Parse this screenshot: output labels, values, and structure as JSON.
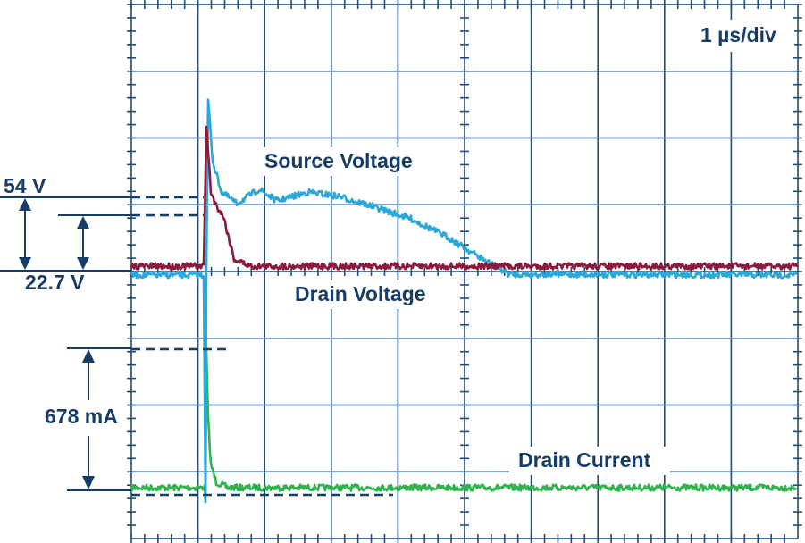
{
  "scale": "1 µs/div",
  "labels": {
    "source_voltage": "Source Voltage",
    "drain_voltage": "Drain Voltage",
    "drain_current": "Drain Current"
  },
  "annotations": {
    "upper_voltage": "54 V",
    "lower_voltage": "22.7 V",
    "current": "678 mA"
  }
}
